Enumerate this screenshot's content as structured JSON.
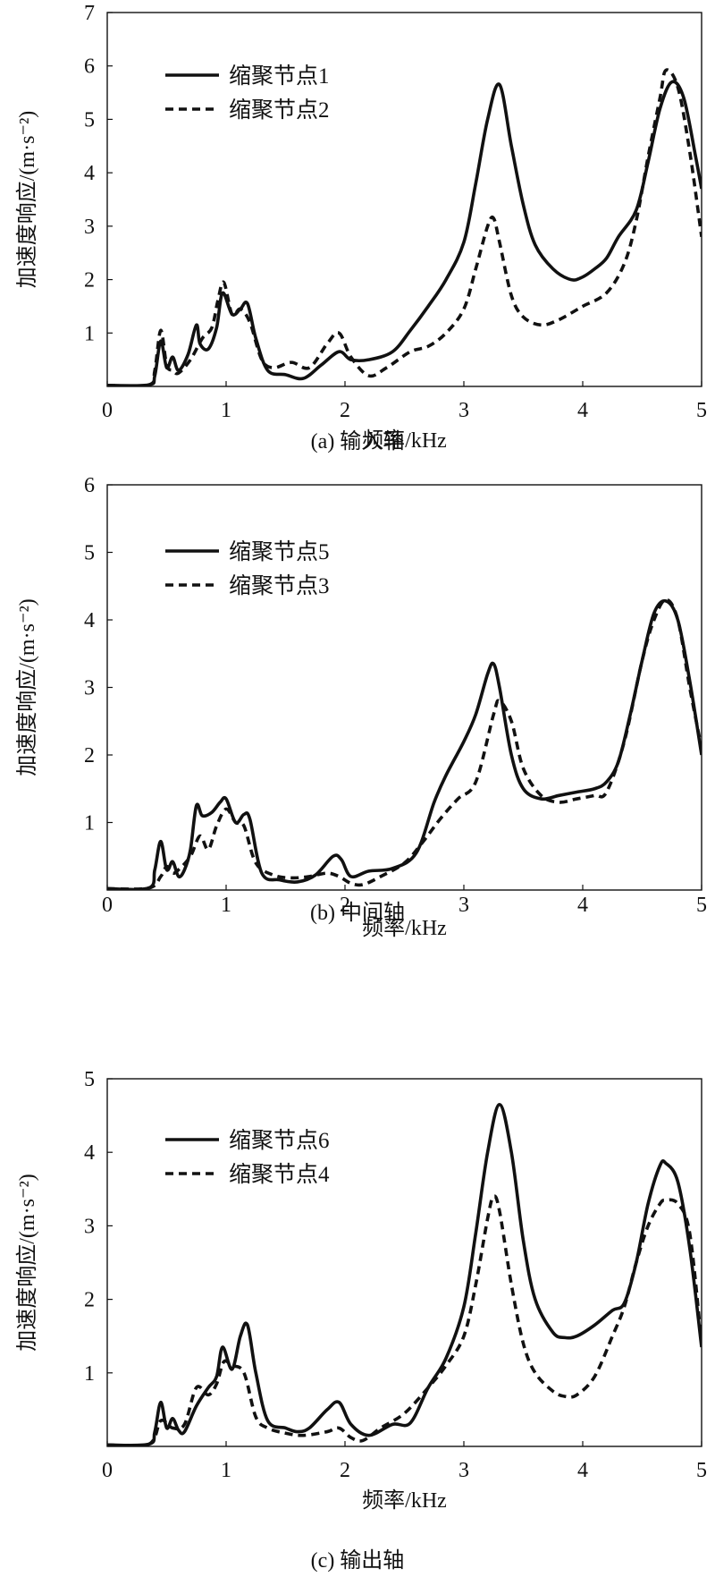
{
  "chart_data": [
    {
      "type": "line",
      "caption": "(a) 输入轴",
      "xlabel": "频率/kHz",
      "ylabel": "加速度响应/(m·s⁻²)",
      "xlim": [
        0,
        5
      ],
      "ylim": [
        0,
        7
      ],
      "xticks": [
        "0",
        "1",
        "2",
        "3",
        "4",
        "5"
      ],
      "yticks": [
        "1",
        "2",
        "3",
        "4",
        "5",
        "6",
        "7"
      ],
      "legend_position": "top-left",
      "series": [
        {
          "name": "缩聚节点1",
          "style": "solid",
          "x": [
            0,
            0.35,
            0.4,
            0.45,
            0.5,
            0.55,
            0.6,
            0.68,
            0.75,
            0.78,
            0.85,
            0.92,
            0.97,
            1.05,
            1.12,
            1.18,
            1.25,
            1.35,
            1.5,
            1.65,
            1.8,
            1.95,
            2.05,
            2.2,
            2.4,
            2.55,
            2.7,
            2.85,
            3.0,
            3.1,
            3.2,
            3.3,
            3.4,
            3.5,
            3.6,
            3.75,
            3.9,
            4.0,
            4.1,
            4.2,
            4.3,
            4.45,
            4.55,
            4.65,
            4.75,
            4.85,
            4.95,
            5.0
          ],
          "y": [
            0.02,
            0.03,
            0.2,
            0.85,
            0.35,
            0.55,
            0.3,
            0.6,
            1.15,
            0.8,
            0.7,
            1.1,
            1.75,
            1.35,
            1.45,
            1.55,
            0.9,
            0.3,
            0.22,
            0.15,
            0.4,
            0.65,
            0.5,
            0.5,
            0.65,
            1.05,
            1.5,
            2.0,
            2.7,
            3.8,
            5.0,
            5.65,
            4.5,
            3.4,
            2.65,
            2.2,
            2.0,
            2.05,
            2.2,
            2.4,
            2.8,
            3.3,
            4.2,
            5.2,
            5.7,
            5.4,
            4.3,
            3.7
          ]
        },
        {
          "name": "缩聚节点2",
          "style": "dashed",
          "x": [
            0,
            0.35,
            0.4,
            0.45,
            0.5,
            0.55,
            0.6,
            0.7,
            0.8,
            0.88,
            0.93,
            0.98,
            1.05,
            1.12,
            1.2,
            1.3,
            1.4,
            1.55,
            1.7,
            1.85,
            1.95,
            2.05,
            2.2,
            2.35,
            2.55,
            2.7,
            2.85,
            3.0,
            3.1,
            3.2,
            3.25,
            3.3,
            3.4,
            3.5,
            3.65,
            3.8,
            4.0,
            4.2,
            4.35,
            4.45,
            4.55,
            4.65,
            4.7,
            4.8,
            4.9,
            5.0
          ],
          "y": [
            0.02,
            0.03,
            0.3,
            1.05,
            0.4,
            0.3,
            0.25,
            0.5,
            0.9,
            1.1,
            1.6,
            1.95,
            1.35,
            1.45,
            1.2,
            0.5,
            0.35,
            0.45,
            0.35,
            0.8,
            1.0,
            0.55,
            0.2,
            0.35,
            0.65,
            0.75,
            1.0,
            1.45,
            2.2,
            3.0,
            3.15,
            2.7,
            1.7,
            1.3,
            1.15,
            1.25,
            1.5,
            1.75,
            2.3,
            3.1,
            4.3,
            5.4,
            5.92,
            5.6,
            4.4,
            2.8
          ]
        }
      ]
    },
    {
      "type": "line",
      "caption": "(b) 中间轴",
      "xlabel": "频率/kHz",
      "ylabel": "加速度响应/(m·s⁻²)",
      "xlim": [
        0,
        5
      ],
      "ylim": [
        0,
        6
      ],
      "xticks": [
        "0",
        "1",
        "2",
        "3",
        "4",
        "5"
      ],
      "yticks": [
        "1",
        "2",
        "3",
        "4",
        "5",
        "6"
      ],
      "legend_position": "top-left",
      "series": [
        {
          "name": "缩聚节点5",
          "style": "solid",
          "x": [
            0,
            0.35,
            0.4,
            0.45,
            0.5,
            0.55,
            0.6,
            0.65,
            0.7,
            0.75,
            0.8,
            0.88,
            0.95,
            1.0,
            1.08,
            1.15,
            1.2,
            1.3,
            1.45,
            1.6,
            1.75,
            1.9,
            1.97,
            2.05,
            2.2,
            2.4,
            2.6,
            2.75,
            2.85,
            3.0,
            3.1,
            3.2,
            3.25,
            3.3,
            3.4,
            3.5,
            3.65,
            3.8,
            3.95,
            4.1,
            4.2,
            4.3,
            4.4,
            4.5,
            4.6,
            4.7,
            4.8,
            4.9,
            5.0
          ],
          "y": [
            0.02,
            0.03,
            0.3,
            0.72,
            0.3,
            0.42,
            0.2,
            0.3,
            0.6,
            1.25,
            1.1,
            1.15,
            1.3,
            1.35,
            1.0,
            1.12,
            1.05,
            0.25,
            0.15,
            0.12,
            0.22,
            0.5,
            0.45,
            0.2,
            0.28,
            0.32,
            0.55,
            1.3,
            1.7,
            2.2,
            2.6,
            3.2,
            3.35,
            3.0,
            2.0,
            1.5,
            1.35,
            1.4,
            1.45,
            1.5,
            1.6,
            1.9,
            2.6,
            3.4,
            4.1,
            4.28,
            4.0,
            3.1,
            2.0
          ]
        },
        {
          "name": "缩聚节点3",
          "style": "dashed",
          "x": [
            0,
            0.35,
            0.45,
            0.5,
            0.55,
            0.6,
            0.7,
            0.78,
            0.85,
            0.92,
            1.0,
            1.08,
            1.15,
            1.25,
            1.4,
            1.55,
            1.7,
            1.85,
            1.95,
            2.05,
            2.15,
            2.3,
            2.5,
            2.65,
            2.8,
            2.95,
            3.1,
            3.25,
            3.3,
            3.4,
            3.5,
            3.65,
            3.8,
            3.95,
            4.1,
            4.2,
            4.35,
            4.5,
            4.6,
            4.7,
            4.8,
            4.9,
            5.0
          ],
          "y": [
            0.02,
            0.03,
            0.2,
            0.35,
            0.25,
            0.3,
            0.5,
            0.8,
            0.6,
            0.95,
            1.2,
            1.0,
            0.95,
            0.4,
            0.22,
            0.18,
            0.2,
            0.25,
            0.2,
            0.1,
            0.08,
            0.2,
            0.4,
            0.7,
            1.05,
            1.35,
            1.6,
            2.6,
            2.8,
            2.5,
            1.8,
            1.4,
            1.3,
            1.35,
            1.4,
            1.45,
            2.2,
            3.4,
            4.0,
            4.3,
            4.0,
            3.0,
            2.1
          ]
        }
      ]
    },
    {
      "type": "line",
      "caption": "(c) 输出轴",
      "xlabel": "频率/kHz",
      "ylabel": "加速度响应/(m·s⁻²)",
      "xlim": [
        0,
        5
      ],
      "ylim": [
        0,
        5
      ],
      "xticks": [
        "0",
        "1",
        "2",
        "3",
        "4",
        "5"
      ],
      "yticks": [
        "1",
        "2",
        "3",
        "4",
        "5"
      ],
      "legend_position": "top-left",
      "series": [
        {
          "name": "缩聚节点6",
          "style": "solid",
          "x": [
            0,
            0.35,
            0.4,
            0.45,
            0.5,
            0.55,
            0.6,
            0.65,
            0.75,
            0.85,
            0.92,
            0.97,
            1.05,
            1.12,
            1.18,
            1.25,
            1.35,
            1.5,
            1.6,
            1.7,
            1.85,
            1.95,
            2.05,
            2.2,
            2.4,
            2.55,
            2.7,
            2.85,
            3.0,
            3.1,
            3.2,
            3.3,
            3.4,
            3.5,
            3.6,
            3.75,
            3.85,
            3.95,
            4.1,
            4.25,
            4.35,
            4.45,
            4.55,
            4.65,
            4.7,
            4.8,
            4.9,
            5.0
          ],
          "y": [
            0.02,
            0.03,
            0.2,
            0.6,
            0.25,
            0.38,
            0.22,
            0.2,
            0.55,
            0.8,
            0.95,
            1.35,
            1.05,
            1.5,
            1.65,
            1.0,
            0.35,
            0.25,
            0.2,
            0.25,
            0.5,
            0.6,
            0.3,
            0.15,
            0.3,
            0.32,
            0.8,
            1.2,
            1.9,
            2.9,
            4.0,
            4.65,
            4.0,
            2.8,
            2.0,
            1.55,
            1.48,
            1.5,
            1.65,
            1.85,
            1.95,
            2.5,
            3.3,
            3.82,
            3.85,
            3.6,
            2.7,
            1.35
          ]
        },
        {
          "name": "缩聚节点4",
          "style": "dashed",
          "x": [
            0,
            0.35,
            0.45,
            0.55,
            0.65,
            0.75,
            0.85,
            0.92,
            0.98,
            1.05,
            1.15,
            1.25,
            1.35,
            1.5,
            1.65,
            1.85,
            1.95,
            2.05,
            2.15,
            2.3,
            2.5,
            2.7,
            2.85,
            3.0,
            3.1,
            3.2,
            3.25,
            3.3,
            3.4,
            3.5,
            3.6,
            3.75,
            3.85,
            3.95,
            4.1,
            4.25,
            4.35,
            4.45,
            4.55,
            4.65,
            4.7,
            4.8,
            4.9,
            5.0
          ],
          "y": [
            0.02,
            0.03,
            0.35,
            0.25,
            0.3,
            0.8,
            0.7,
            0.85,
            1.15,
            1.1,
            1.0,
            0.4,
            0.25,
            0.18,
            0.15,
            0.2,
            0.25,
            0.12,
            0.08,
            0.25,
            0.45,
            0.8,
            1.1,
            1.5,
            2.2,
            3.1,
            3.4,
            3.2,
            2.2,
            1.4,
            1.0,
            0.75,
            0.68,
            0.7,
            0.95,
            1.5,
            1.9,
            2.5,
            3.0,
            3.3,
            3.35,
            3.3,
            2.9,
            1.4
          ]
        }
      ]
    }
  ]
}
